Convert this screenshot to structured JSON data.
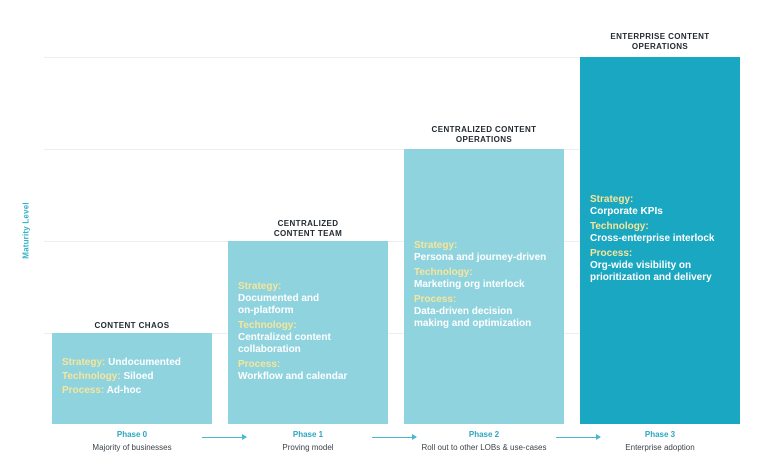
{
  "y_axis_label": "Maturity Level",
  "stages": [
    {
      "title_lines": [
        "CONTENT CHAOS"
      ],
      "items": [
        {
          "label": "Strategy:",
          "value": "Undocumented"
        },
        {
          "label": "Technology:",
          "value": "Siloed"
        },
        {
          "label": "Process:",
          "value": "Ad-hoc"
        }
      ],
      "phase": "Phase 0",
      "phase_desc": "Majority of businesses"
    },
    {
      "title_lines": [
        "CENTRALIZED",
        "CONTENT TEAM"
      ],
      "items": [
        {
          "label": "Strategy:",
          "value_lines": [
            "Documented and",
            "on-platform"
          ]
        },
        {
          "label": "Technology:",
          "value_lines": [
            "Centralized content",
            "collaboration"
          ]
        },
        {
          "label": "Process:",
          "value_lines": [
            "Workflow and calendar"
          ]
        }
      ],
      "phase": "Phase 1",
      "phase_desc": "Proving model"
    },
    {
      "title_lines": [
        "CENTRALIZED CONTENT",
        "OPERATIONS"
      ],
      "items": [
        {
          "label": "Strategy:",
          "value_lines": [
            "Persona and journey-driven"
          ]
        },
        {
          "label": "Technology:",
          "value_lines": [
            "Marketing org interlock"
          ]
        },
        {
          "label": "Process:",
          "value_lines": [
            "Data-driven decision",
            "making and optimization"
          ]
        }
      ],
      "phase": "Phase 2",
      "phase_desc": "Roll out to other LOBs & use-cases"
    },
    {
      "title_lines": [
        "ENTERPRISE CONTENT",
        "OPERATIONS"
      ],
      "items": [
        {
          "label": "Strategy:",
          "value_lines": [
            "Corporate KPIs"
          ]
        },
        {
          "label": "Technology:",
          "value_lines": [
            "Cross-enterprise interlock"
          ]
        },
        {
          "label": "Process:",
          "value_lines": [
            "Org-wide visibility on",
            "prioritization and delivery"
          ]
        }
      ],
      "phase": "Phase 3",
      "phase_desc": "Enterprise adoption"
    }
  ],
  "colors": {
    "block_light": "#8fd3df",
    "block_dark": "#1aa7c1",
    "label_yellow": "#f6e59a",
    "axis_teal": "#33b3c9"
  }
}
